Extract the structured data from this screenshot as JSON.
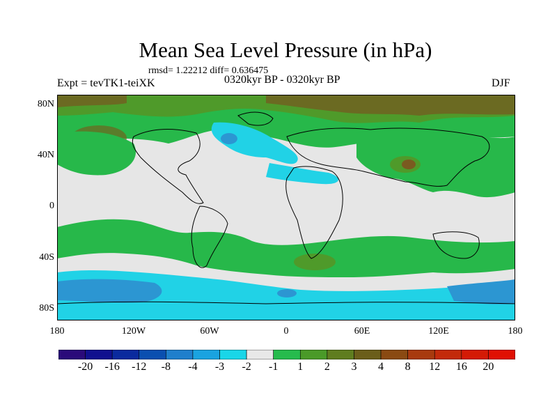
{
  "title": "Mean Sea Level Pressure (in hPa)",
  "stats": "rmsd= 1.22212  diff= 0.636475",
  "experiment": "Expt = tevTK1-teiXK",
  "period": "0320kyr BP - 0320kyr BP",
  "season": "DJF",
  "lat_labels": [
    "80N",
    "40N",
    "0",
    "40S",
    "80S"
  ],
  "lon_labels": [
    "180",
    "120W",
    "60W",
    "0",
    "60E",
    "120E",
    "180"
  ],
  "colorbar": {
    "labels": [
      "-20",
      "-16",
      "-12",
      "-8",
      "-4",
      "-3",
      "-2",
      "-1",
      "1",
      "2",
      "3",
      "4",
      "8",
      "12",
      "16",
      "20"
    ],
    "colors": [
      "#2a0a7a",
      "#10108f",
      "#0a2a9e",
      "#0a4fb0",
      "#1f7fcc",
      "#1aa3e0",
      "#19d6e8",
      "#e8e8e8",
      "#26bb4d",
      "#4a9a28",
      "#5f7d1f",
      "#6b5e1a",
      "#8a4a12",
      "#a83a0e",
      "#c32a0a",
      "#d41a05",
      "#e01003"
    ]
  },
  "map_colors": {
    "land_outline": "#000000",
    "neutral": "#e6e6e6",
    "light_green": "#27b84a",
    "green": "#4f9a2a",
    "olive": "#6b6a22",
    "brown": "#7a5a20",
    "cyan": "#21d2e6",
    "blue": "#2c96d2",
    "deep_blue": "#1d6fc2"
  }
}
